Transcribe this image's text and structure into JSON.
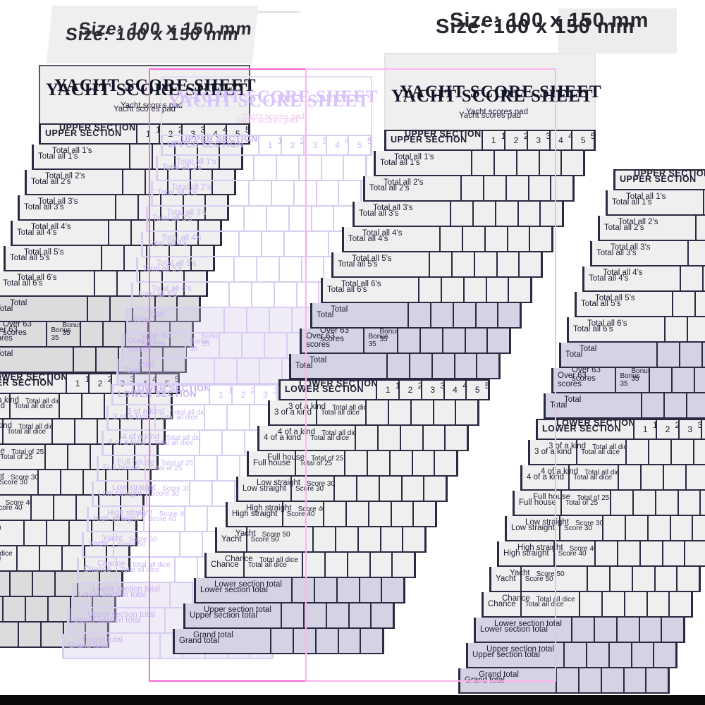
{
  "size_label": "Size: 100 x 150 mm",
  "sheet": {
    "title": "YACHT SCORE SHEET",
    "subtitle": "Yacht scores pad",
    "upper_section": {
      "header": "UPPER SECTION",
      "columns": [
        "1",
        "2",
        "3",
        "4",
        "5"
      ],
      "rows": [
        {
          "label": "Total all 1's",
          "note": "",
          "shaded": false
        },
        {
          "label": "Total all 2's",
          "note": "",
          "shaded": false
        },
        {
          "label": "Total all 3's",
          "note": "",
          "shaded": false
        },
        {
          "label": "Total all 4's",
          "note": "",
          "shaded": false
        },
        {
          "label": "Total all 5's",
          "note": "",
          "shaded": false
        },
        {
          "label": "Total all 6's",
          "note": "",
          "shaded": false
        },
        {
          "label": "Total",
          "note": "",
          "shaded": true
        },
        {
          "label": "Over 63 scores",
          "note": "Bonus 35",
          "shaded": true
        },
        {
          "label": "Total",
          "note": "",
          "shaded": true
        }
      ]
    },
    "lower_section": {
      "header": "LOWER SECTION",
      "columns": [
        "1",
        "2",
        "3",
        "4",
        "5"
      ],
      "rows": [
        {
          "label": "3 of a kind",
          "note": "Total all dice",
          "shaded": false
        },
        {
          "label": "4 of a kind",
          "note": "Total all dice",
          "shaded": false
        },
        {
          "label": "Full house",
          "note": "Total of 25",
          "shaded": false
        },
        {
          "label": "Low straight",
          "note": "Score 30",
          "shaded": false
        },
        {
          "label": "High straight",
          "note": "Score 40",
          "shaded": false
        },
        {
          "label": "Yacht",
          "note": "Score 50",
          "shaded": false
        },
        {
          "label": "Chance",
          "note": "Total all dice",
          "shaded": false
        },
        {
          "label": "Lower section total",
          "note": "",
          "shaded": true
        },
        {
          "label": "Upper section total",
          "note": "",
          "shaded": true
        },
        {
          "label": "Grand total",
          "note": "",
          "shaded": true
        }
      ]
    }
  },
  "colors": {
    "crop_outline": "#ff66d6",
    "crop_outline_light": "#ffb5ec",
    "paper": "#efefef",
    "ink": "#1d1d32",
    "shade_lavender": "#d5d2e3",
    "shade_gray": "#dcdcdf",
    "ghost_ink": "#c9b4f2",
    "ghost_pink": "#f0c9ee",
    "bottom_bar": "#0b0b0b"
  }
}
